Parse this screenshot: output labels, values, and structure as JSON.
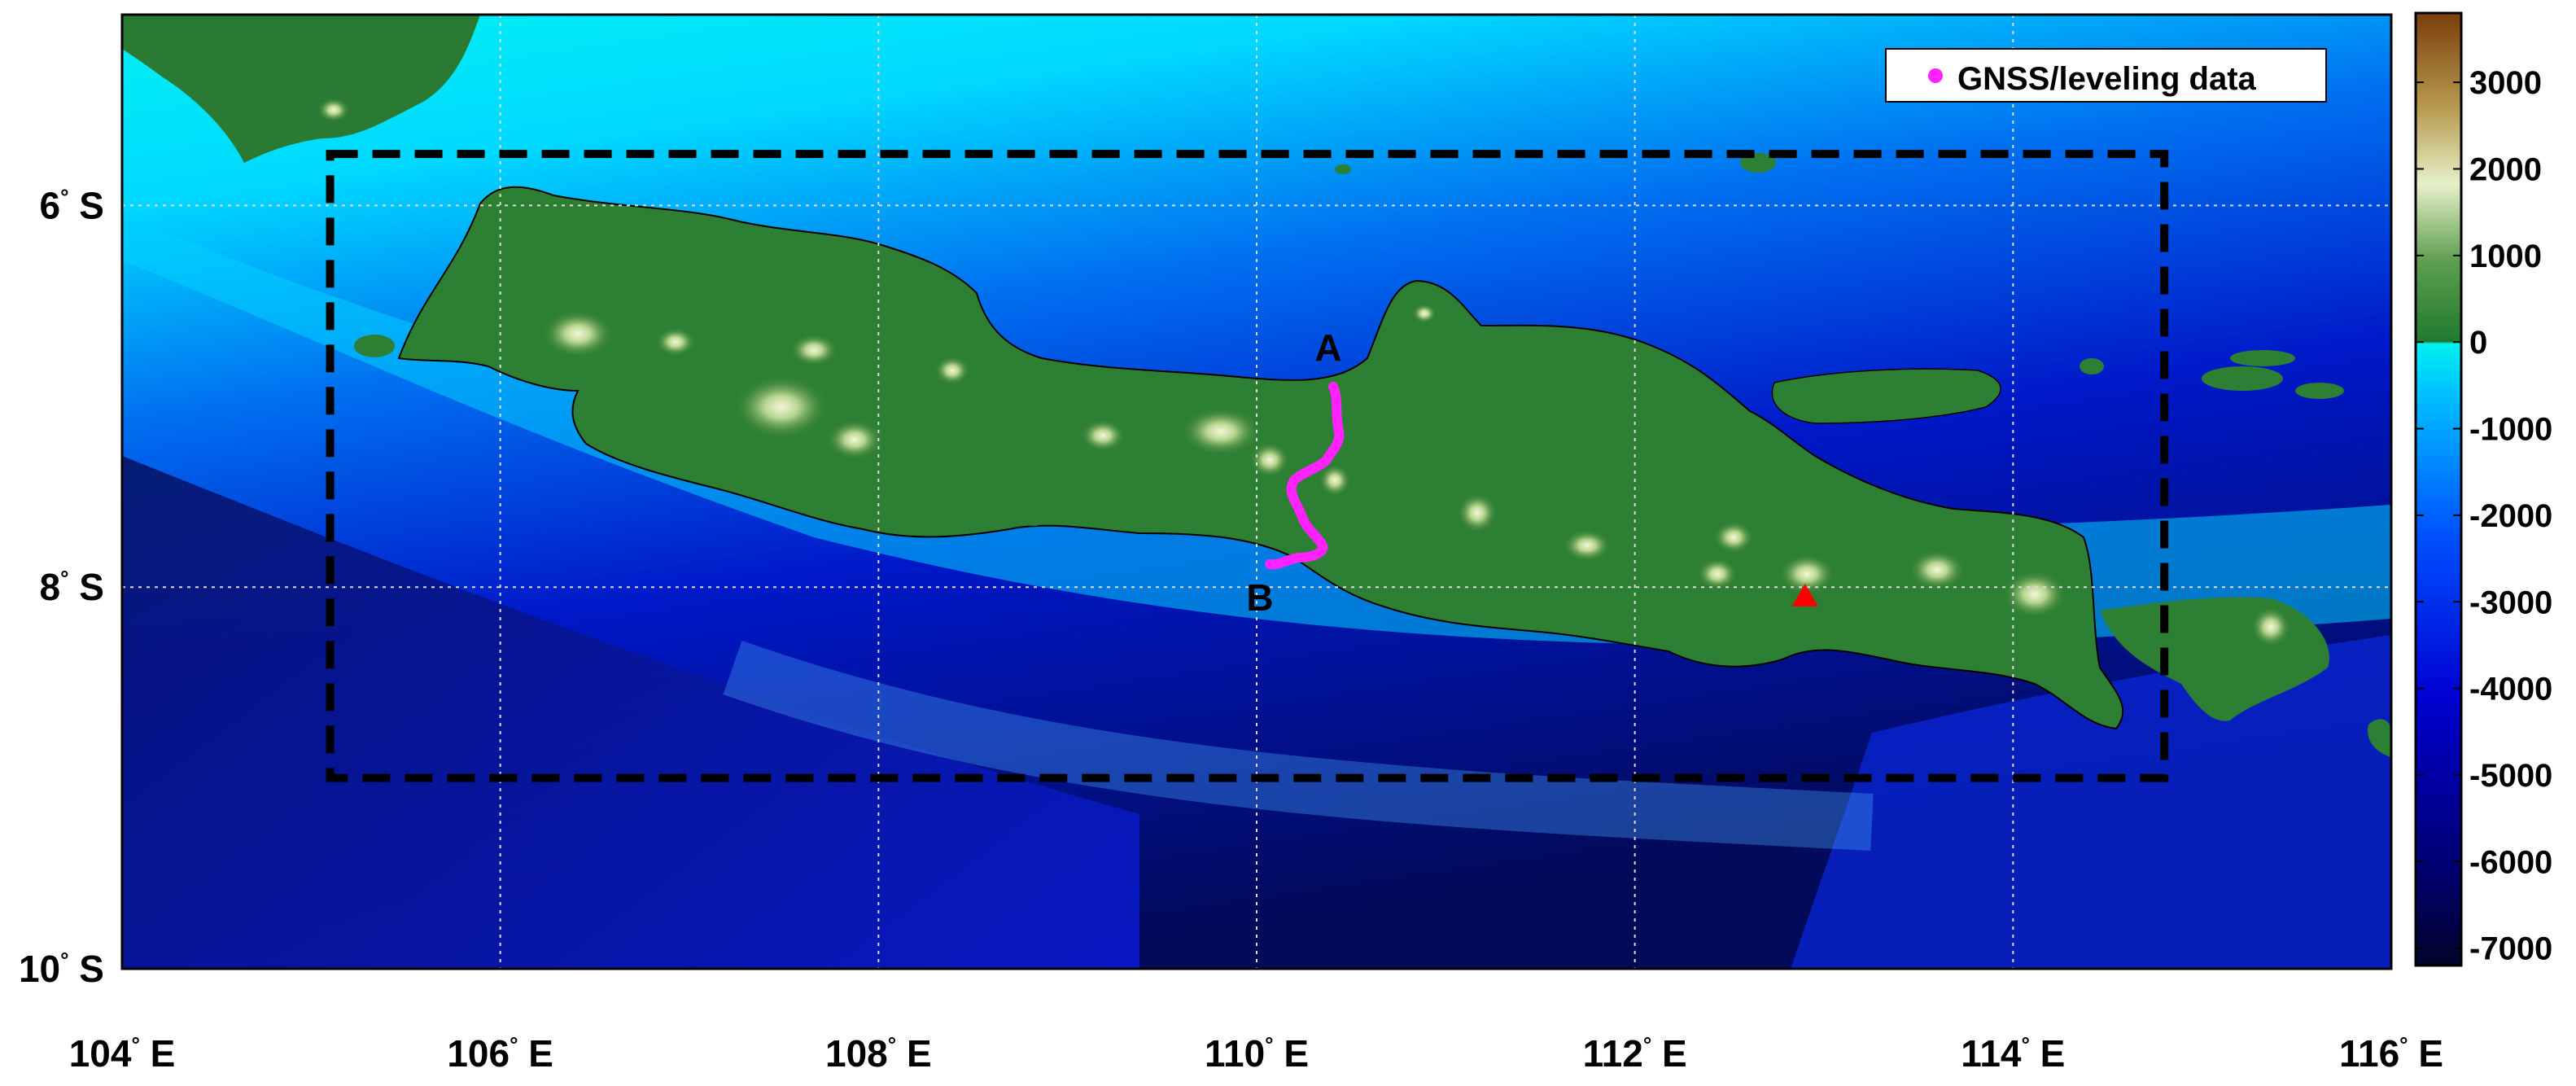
{
  "map": {
    "y_ticks": [
      {
        "deg": "6",
        "hemi": "S",
        "lat": -6
      },
      {
        "deg": "8",
        "hemi": "S",
        "lat": -8
      },
      {
        "deg": "10",
        "hemi": "S",
        "lat": -10
      }
    ],
    "x_ticks": [
      {
        "deg": "104",
        "hemi": "E",
        "lon": 104
      },
      {
        "deg": "106",
        "hemi": "E",
        "lon": 106
      },
      {
        "deg": "108",
        "hemi": "E",
        "lon": 108
      },
      {
        "deg": "110",
        "hemi": "E",
        "lon": 110
      },
      {
        "deg": "112",
        "hemi": "E",
        "lon": 112
      },
      {
        "deg": "114",
        "hemi": "E",
        "lon": 114
      },
      {
        "deg": "116",
        "hemi": "E",
        "lon": 116
      }
    ],
    "extent": {
      "lon_min": 104,
      "lon_max": 116,
      "lat_min": -10,
      "lat_max": -5.0
    },
    "legend": {
      "label": "GNSS/leveling data",
      "marker_color": "#ff22ff"
    },
    "point_labels": {
      "a": "A",
      "b": "B"
    },
    "study_area": {
      "lon_min": 105.1,
      "lon_max": 114.8,
      "lat_min": -9.0,
      "lat_max": -5.73
    },
    "volcano_marker": {
      "lon": 112.9,
      "lat": -8.05,
      "color": "#ff0000"
    },
    "grid": true
  },
  "colorbar": {
    "ticks": [
      "3000",
      "2000",
      "1000",
      "0",
      "-1000",
      "-2000",
      "-3000",
      "-4000",
      "-5000",
      "-6000",
      "-7000"
    ],
    "range": [
      -7200,
      3800
    ],
    "colors": {
      "deep_ocean": "#02042a",
      "ocean_blue": "#0000c8",
      "shallow": "#00c8ff",
      "coast": "#00f0f0",
      "lowland": "#1e7a2e",
      "hill": "#6fa860",
      "highland": "#e8f0c8",
      "mountain": "#b89b50",
      "peak": "#7a3e0a"
    }
  }
}
